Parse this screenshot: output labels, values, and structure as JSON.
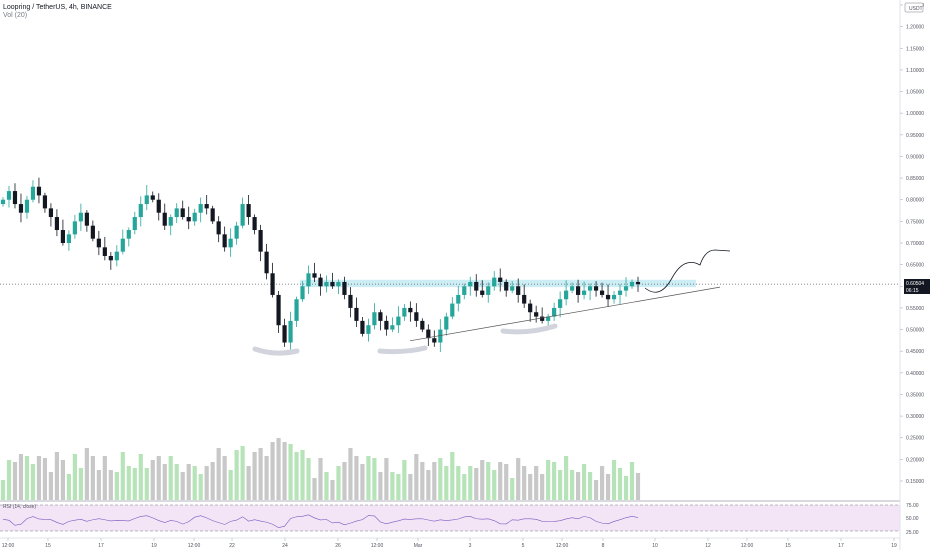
{
  "header": {
    "symbol_line": "Loopring / TetherUS, 4h, BINANCE",
    "volume_label": "Vol (20)",
    "currency_badge": "USDT"
  },
  "rsi": {
    "label": "RSI (14, close)",
    "levels": [
      "75.00",
      "50.00",
      "25.00"
    ]
  },
  "last_price": {
    "value": "0.60504",
    "countdown": "06:15",
    "price": 0.60504
  },
  "colors": {
    "up": "#26a69a",
    "up_light": "#b7e3b9",
    "down": "#131722",
    "down_vol": "#c8c8c8",
    "zone": "#bfe8f0",
    "rsi_band": "#f3e5f5",
    "rsi_line": "#7e57c2",
    "vol_ma": "#555555"
  },
  "chart_data": {
    "type": "candlestick",
    "y_axis_ticks": [
      "1.25000",
      "1.20000",
      "1.15000",
      "1.10000",
      "1.05000",
      "1.00000",
      "0.95000",
      "0.90000",
      "0.85000",
      "0.80000",
      "0.75000",
      "0.70000",
      "0.65000",
      "0.60000",
      "0.55000",
      "0.50000",
      "0.45000",
      "0.40000",
      "0.35000",
      "0.30000",
      "0.25000",
      "0.20000",
      "0.15000"
    ],
    "x_axis_ticks": [
      "12:00",
      "15",
      "17",
      "19",
      "12:00",
      "22",
      "24",
      "26",
      "12:00",
      "Mar",
      "3",
      "5",
      "12:00",
      "8",
      "10",
      "12",
      "12:00",
      "15",
      "17",
      "19"
    ],
    "resistance_zone": [
      0.598,
      0.615
    ],
    "support_trendline": {
      "from": 0.474,
      "to": 0.598
    },
    "projection_path": "zig-zag up to about 0.68",
    "candles_close": [
      0.8,
      0.82,
      0.79,
      0.77,
      0.8,
      0.83,
      0.81,
      0.78,
      0.76,
      0.73,
      0.7,
      0.72,
      0.75,
      0.77,
      0.74,
      0.71,
      0.69,
      0.67,
      0.66,
      0.68,
      0.71,
      0.73,
      0.76,
      0.79,
      0.81,
      0.8,
      0.77,
      0.74,
      0.76,
      0.78,
      0.76,
      0.75,
      0.77,
      0.79,
      0.78,
      0.75,
      0.72,
      0.69,
      0.71,
      0.74,
      0.79,
      0.76,
      0.73,
      0.68,
      0.63,
      0.58,
      0.51,
      0.47,
      0.52,
      0.57,
      0.6,
      0.63,
      0.62,
      0.6,
      0.61,
      0.6,
      0.61,
      0.58,
      0.55,
      0.52,
      0.49,
      0.51,
      0.54,
      0.52,
      0.5,
      0.51,
      0.53,
      0.55,
      0.54,
      0.52,
      0.5,
      0.48,
      0.47,
      0.5,
      0.53,
      0.56,
      0.58,
      0.6,
      0.61,
      0.59,
      0.58,
      0.6,
      0.62,
      0.61,
      0.59,
      0.6,
      0.58,
      0.56,
      0.54,
      0.53,
      0.52,
      0.53,
      0.55,
      0.57,
      0.59,
      0.6,
      0.58,
      0.59,
      0.6,
      0.59,
      0.58,
      0.57,
      0.58,
      0.59,
      0.6,
      0.61,
      0.605
    ]
  }
}
